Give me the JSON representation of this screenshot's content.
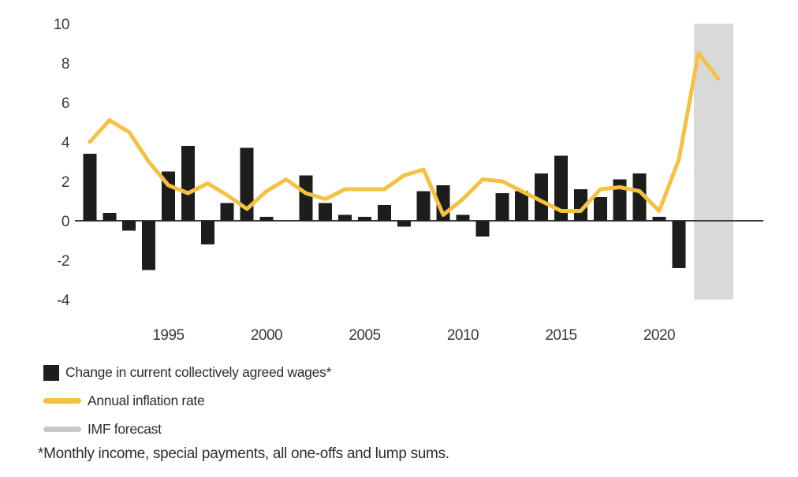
{
  "page": {
    "footnote": "*Monthly income, special payments, all one-offs and lump sums."
  },
  "legend": {
    "items": [
      {
        "label": "Change in current collectively agreed wages*",
        "swatch": "black-square-swatch",
        "color": "#1d1d1b"
      },
      {
        "label": "Annual inflation rate",
        "swatch": "yellow-line-swatch",
        "color": "#f5c143"
      },
      {
        "label": "IMF forecast",
        "swatch": "gray-line-swatch",
        "color": "#c8c8c8"
      }
    ]
  },
  "chart_data": {
    "type": "combo-bar-line",
    "title": "",
    "xlabel": "",
    "ylabel": "",
    "grid": false,
    "legend_position": "bottom-left",
    "ylim": [
      -4,
      10
    ],
    "yticks": [
      10,
      8,
      6,
      4,
      2,
      0,
      -2,
      -4
    ],
    "xticks": [
      1995,
      2000,
      2005,
      2010,
      2015,
      2020
    ],
    "x": [
      1991,
      1992,
      1993,
      1994,
      1995,
      1996,
      1997,
      1998,
      1999,
      2000,
      2001,
      2002,
      2003,
      2004,
      2005,
      2006,
      2007,
      2008,
      2009,
      2010,
      2011,
      2012,
      2013,
      2014,
      2015,
      2016,
      2017,
      2018,
      2019,
      2020,
      2021,
      2022,
      2023
    ],
    "series": [
      {
        "name": "Change in current collectively agreed wages*",
        "type": "bar",
        "color": "#1d1d1b",
        "values": [
          3.4,
          0.4,
          -0.5,
          -2.5,
          2.5,
          3.8,
          -1.2,
          0.9,
          3.7,
          0.2,
          0.0,
          2.3,
          0.9,
          0.3,
          0.2,
          0.8,
          -0.3,
          1.5,
          1.8,
          0.3,
          -0.8,
          1.4,
          1.5,
          2.4,
          3.3,
          1.6,
          1.2,
          2.1,
          2.4,
          0.2,
          -2.4,
          null,
          null
        ]
      },
      {
        "name": "Annual inflation rate",
        "type": "line",
        "color": "#f5c143",
        "values": [
          4.0,
          5.1,
          4.5,
          3.0,
          1.8,
          1.4,
          1.9,
          1.3,
          0.6,
          1.5,
          2.1,
          1.4,
          1.1,
          1.6,
          1.6,
          1.6,
          2.3,
          2.6,
          0.3,
          1.1,
          2.1,
          2.0,
          1.5,
          1.0,
          0.5,
          0.5,
          1.6,
          1.7,
          1.5,
          0.5,
          3.1,
          8.5,
          7.2
        ]
      }
    ],
    "forecast_band": {
      "label": "IMF forecast",
      "years": [
        2022,
        2023
      ],
      "color": "#d9d9d9"
    }
  }
}
